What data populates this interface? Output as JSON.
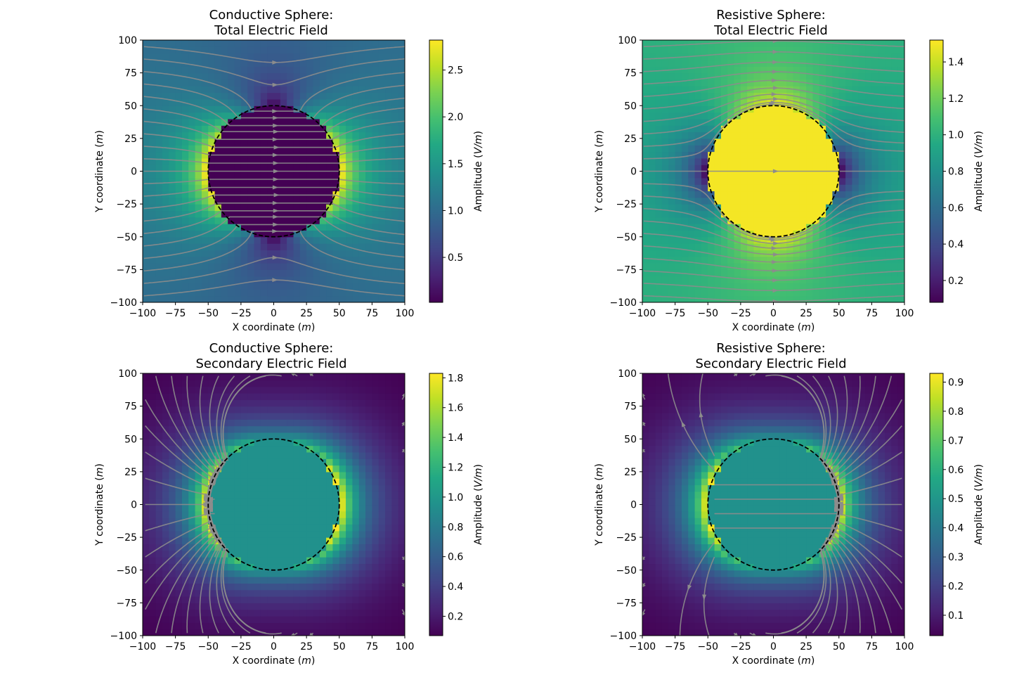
{
  "figure": {
    "background": "#ffffff",
    "streamline_color": "#8c8c8c",
    "boundary_color": "#000000",
    "colormap": "viridis"
  },
  "chart_data": [
    {
      "type": "heatmap",
      "field": "total",
      "case": "conductive",
      "title_line1": "Conductive Sphere:",
      "title_line2": "Total Electric Field",
      "xlabel_text": "X coordinate (",
      "xlabel_unit": "m",
      "ylabel_text": "Y coordinate (",
      "ylabel_unit": "m",
      "xlim": [
        -100,
        100
      ],
      "ylim": [
        -100,
        100
      ],
      "xticks": [
        -100,
        -75,
        -50,
        -25,
        0,
        25,
        50,
        75,
        100
      ],
      "yticks": [
        -100,
        -75,
        -50,
        -25,
        0,
        25,
        50,
        75,
        100
      ],
      "sphere_radius": 50,
      "grid_n": 40,
      "colorbar": {
        "label_text": "Amplitude (",
        "label_unit": "V/m",
        "range": [
          0.02,
          2.82
        ],
        "ticks": [
          0.5,
          1.0,
          1.5,
          2.0,
          2.5
        ]
      },
      "background_amplitude": 1.0,
      "interior_amplitude": 0.02,
      "peak_amplitude": 2.82
    },
    {
      "type": "heatmap",
      "field": "total",
      "case": "resistive",
      "title_line1": "Resistive Sphere:",
      "title_line2": "Total Electric Field",
      "xlabel_text": "X coordinate (",
      "xlabel_unit": "m",
      "ylabel_text": "Y coordinate (",
      "ylabel_unit": "m",
      "xlim": [
        -100,
        100
      ],
      "ylim": [
        -100,
        100
      ],
      "xticks": [
        -100,
        -75,
        -50,
        -25,
        0,
        25,
        50,
        75,
        100
      ],
      "yticks": [
        -100,
        -75,
        -50,
        -25,
        0,
        25,
        50,
        75,
        100
      ],
      "sphere_radius": 50,
      "grid_n": 40,
      "colorbar": {
        "label_text": "Amplitude (",
        "label_unit": "V/m",
        "range": [
          0.08,
          1.52
        ],
        "ticks": [
          0.2,
          0.4,
          0.6,
          0.8,
          1.0,
          1.2,
          1.4
        ]
      },
      "background_amplitude": 1.0,
      "interior_amplitude": 1.5,
      "peak_amplitude": 1.5
    },
    {
      "type": "heatmap",
      "field": "secondary",
      "case": "conductive",
      "title_line1": "Conductive Sphere:",
      "title_line2": "Secondary Electric Field",
      "xlabel_text": "X coordinate (",
      "xlabel_unit": "m",
      "ylabel_text": "Y coordinate (",
      "ylabel_unit": "m",
      "xlim": [
        -100,
        100
      ],
      "ylim": [
        -100,
        100
      ],
      "xticks": [
        -100,
        -75,
        -50,
        -25,
        0,
        25,
        50,
        75,
        100
      ],
      "yticks": [
        -100,
        -75,
        -50,
        -25,
        0,
        25,
        50,
        75,
        100
      ],
      "sphere_radius": 50,
      "grid_n": 40,
      "colorbar": {
        "label_text": "Amplitude (",
        "label_unit": "V/m",
        "range": [
          0.07,
          1.83
        ],
        "ticks": [
          0.2,
          0.4,
          0.6,
          0.8,
          1.0,
          1.2,
          1.4,
          1.6,
          1.8
        ]
      },
      "background_amplitude": 0.0,
      "interior_amplitude": 0.95,
      "peak_amplitude": 1.83
    },
    {
      "type": "heatmap",
      "field": "secondary",
      "case": "resistive",
      "title_line1": "Resistive Sphere:",
      "title_line2": "Secondary Electric Field",
      "xlabel_text": "X coordinate (",
      "xlabel_unit": "m",
      "ylabel_text": "Y coordinate (",
      "ylabel_unit": "m",
      "xlim": [
        -100,
        100
      ],
      "ylim": [
        -100,
        100
      ],
      "xticks": [
        -100,
        -75,
        -50,
        -25,
        0,
        25,
        50,
        75,
        100
      ],
      "yticks": [
        -100,
        -75,
        -50,
        -25,
        0,
        25,
        50,
        75,
        100
      ],
      "sphere_radius": 50,
      "grid_n": 40,
      "colorbar": {
        "label_text": "Amplitude (",
        "label_unit": "V/m",
        "range": [
          0.03,
          0.93
        ],
        "ticks": [
          0.1,
          0.2,
          0.3,
          0.4,
          0.5,
          0.6,
          0.7,
          0.8,
          0.9
        ]
      },
      "background_amplitude": 0.0,
      "interior_amplitude": 0.48,
      "peak_amplitude": 0.93
    }
  ]
}
